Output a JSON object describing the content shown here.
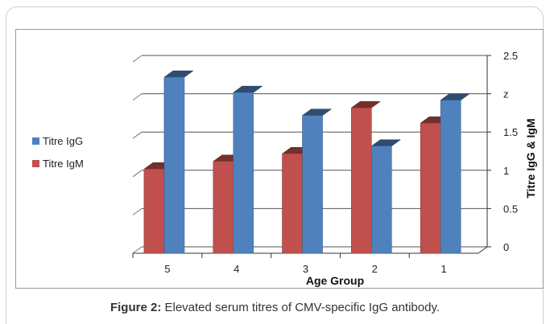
{
  "caption": {
    "label": "Figure 2:",
    "text": "Elevated serum titres of CMV-specific IgG antibody."
  },
  "chart_data": {
    "type": "bar",
    "style": "3d-clustered-column",
    "categories": [
      "5",
      "4",
      "3",
      "2",
      "1"
    ],
    "series": [
      {
        "name": "Titre IgG",
        "color": "#4f81bd",
        "values": [
          2.3,
          2.1,
          1.8,
          1.4,
          2.0
        ]
      },
      {
        "name": "Titre IgM",
        "color": "#c0504d",
        "values": [
          1.1,
          1.2,
          1.3,
          1.9,
          1.7
        ]
      }
    ],
    "xlabel": "Age Group",
    "ylabel": "Titre IgG & IgM",
    "ylim": [
      0,
      2.5
    ],
    "yticks": [
      "0",
      "0.5",
      "1",
      "1.5",
      "z",
      "2.5"
    ],
    "grid": true,
    "legend": "left",
    "y_axis_side": "right"
  }
}
